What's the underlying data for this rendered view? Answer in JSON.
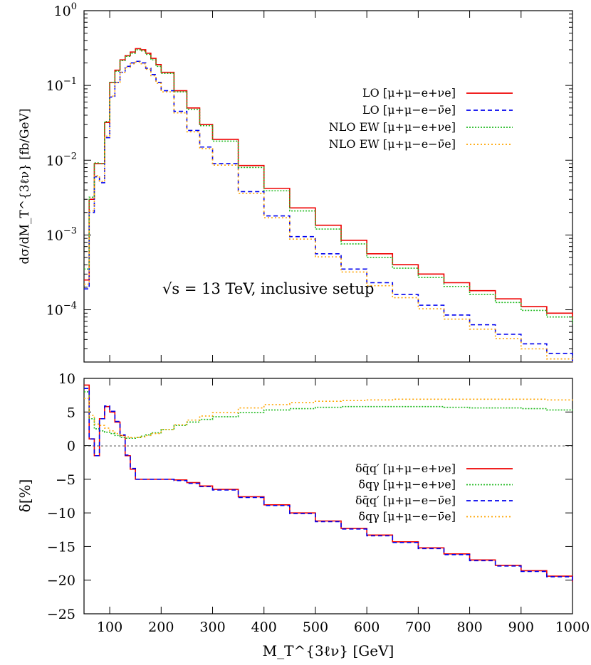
{
  "chart_data": [
    {
      "type": "line",
      "step": true,
      "ylabel": "dσ/dM_T^{3ℓν} [fb/GeV]",
      "yscale": "log",
      "ylim": [
        2e-05,
        1
      ],
      "xlim": [
        50,
        1000
      ],
      "grid": false,
      "legend_position": "top-right",
      "annotation": "√s = 13 TeV, inclusive setup",
      "yticks": [
        "10^-4",
        "10^-3",
        "10^-2",
        "10^-1",
        "10^0"
      ],
      "x": [
        50,
        60,
        70,
        80,
        90,
        100,
        110,
        120,
        130,
        140,
        150,
        160,
        170,
        180,
        190,
        200,
        225,
        250,
        275,
        300,
        350,
        400,
        450,
        500,
        550,
        600,
        650,
        700,
        750,
        800,
        850,
        900,
        950,
        1000
      ],
      "series": [
        {
          "name": "LO [μ+μ−e+νe]",
          "color": "#ee0000",
          "dash": "solid",
          "values": [
            0.00025,
            0.003,
            0.009,
            0.009,
            0.032,
            0.11,
            0.16,
            0.22,
            0.25,
            0.28,
            0.31,
            0.3,
            0.27,
            0.23,
            0.19,
            0.15,
            0.085,
            0.05,
            0.03,
            0.019,
            0.0085,
            0.0042,
            0.0023,
            0.00135,
            0.00085,
            0.00056,
            0.0004,
            0.0003,
            0.00023,
            0.00018,
            0.00014,
            0.00011,
            9e-05,
            7.5e-05
          ]
        },
        {
          "name": "LO [μ+μ−e−ν̄e]",
          "color": "#0000ee",
          "dash": "6,4",
          "values": [
            0.00019,
            0.002,
            0.006,
            0.005,
            0.02,
            0.07,
            0.11,
            0.15,
            0.18,
            0.2,
            0.21,
            0.2,
            0.17,
            0.14,
            0.11,
            0.085,
            0.045,
            0.025,
            0.015,
            0.009,
            0.0038,
            0.0018,
            0.00095,
            0.00056,
            0.00035,
            0.00023,
            0.00016,
            0.000115,
            8.5e-05,
            6.3e-05,
            4.7e-05,
            3.5e-05,
            2.6e-05,
            2e-05
          ]
        },
        {
          "name": "NLO EW [μ+μ−e+νe]",
          "color": "#22bb22",
          "dash": "2,2",
          "values": [
            0.00035,
            0.0032,
            0.0092,
            0.009,
            0.033,
            0.11,
            0.155,
            0.215,
            0.245,
            0.27,
            0.3,
            0.29,
            0.26,
            0.22,
            0.18,
            0.145,
            0.082,
            0.048,
            0.029,
            0.018,
            0.008,
            0.0039,
            0.0021,
            0.0012,
            0.00076,
            0.0005,
            0.00036,
            0.00027,
            0.000205,
            0.00016,
            0.000125,
            9.8e-05,
            8e-05,
            6.6e-05
          ]
        },
        {
          "name": "NLO EW [μ+μ−e−ν̄e]",
          "color": "#ffa500",
          "dash": "2,3",
          "values": [
            0.00022,
            0.0021,
            0.0062,
            0.0052,
            0.021,
            0.072,
            0.11,
            0.15,
            0.175,
            0.195,
            0.205,
            0.195,
            0.165,
            0.135,
            0.107,
            0.082,
            0.043,
            0.024,
            0.0143,
            0.0086,
            0.0036,
            0.0017,
            0.00088,
            0.00051,
            0.00032,
            0.00021,
            0.000145,
            0.000103,
            7.5e-05,
            5.5e-05,
            4.1e-05,
            3e-05,
            2.2e-05,
            1.7e-05
          ]
        }
      ]
    },
    {
      "type": "line",
      "step": true,
      "xlabel": "M_T^{3ℓν} [GeV]",
      "ylabel": "δ[%]",
      "ylim": [
        -25,
        10
      ],
      "xlim": [
        50,
        1000
      ],
      "xticks": [
        100,
        200,
        300,
        400,
        500,
        600,
        700,
        800,
        900,
        1000
      ],
      "yticks": [
        -25,
        -20,
        -15,
        -10,
        -5,
        0,
        5,
        10
      ],
      "grid": false,
      "legend_position": "right",
      "x": [
        50,
        60,
        70,
        80,
        90,
        100,
        110,
        120,
        130,
        140,
        150,
        160,
        170,
        180,
        200,
        225,
        250,
        275,
        300,
        350,
        400,
        450,
        500,
        550,
        600,
        650,
        700,
        750,
        800,
        850,
        900,
        950,
        1000
      ],
      "series": [
        {
          "name": "δq̄q′ [μ+μ−e+νe]",
          "color": "#ee0000",
          "dash": "solid",
          "values": [
            9,
            1,
            -1.5,
            4,
            5.8,
            5,
            3.5,
            1.5,
            -1.5,
            -3.5,
            -5,
            -5,
            -5,
            -5,
            -5,
            -5.1,
            -5.5,
            -6,
            -6.5,
            -7.6,
            -8.8,
            -10,
            -11.2,
            -12.3,
            -13.3,
            -14.3,
            -15.2,
            -16.1,
            -17,
            -17.8,
            -18.6,
            -19.4,
            -20.2
          ]
        },
        {
          "name": "δqγ [μ+μ−e+νe]",
          "color": "#22bb22",
          "dash": "2,2",
          "values": [
            8,
            4,
            2.5,
            2.2,
            2,
            1.8,
            1.5,
            1.2,
            1.1,
            1.1,
            1.2,
            1.4,
            1.6,
            1.9,
            2.4,
            3,
            3.5,
            3.9,
            4.3,
            4.9,
            5.3,
            5.5,
            5.7,
            5.8,
            5.8,
            5.8,
            5.8,
            5.7,
            5.6,
            5.6,
            5.5,
            5.3,
            5.2
          ]
        },
        {
          "name": "δq̄q′ [μ+μ−e−ν̄e]",
          "color": "#0000ee",
          "dash": "6,4",
          "values": [
            8.5,
            1,
            -1.5,
            4,
            5.9,
            5.1,
            3.6,
            1.6,
            -1.4,
            -3.4,
            -5,
            -5,
            -5,
            -5,
            -5,
            -5.2,
            -5.6,
            -6.1,
            -6.6,
            -7.7,
            -8.9,
            -10.1,
            -11.3,
            -12.4,
            -13.4,
            -14.4,
            -15.3,
            -16.2,
            -17.1,
            -17.9,
            -18.7,
            -19.5,
            -20.3
          ]
        },
        {
          "name": "δqγ [μ+μ−e−ν̄e]",
          "color": "#ffa500",
          "dash": "2,3",
          "values": [
            7,
            4.5,
            3.2,
            3,
            2.6,
            2.2,
            1.8,
            1.5,
            1.3,
            1.2,
            1.2,
            1.3,
            1.5,
            1.8,
            2.4,
            3.1,
            3.8,
            4.4,
            4.9,
            5.6,
            6.1,
            6.4,
            6.6,
            6.7,
            6.8,
            6.9,
            6.9,
            6.9,
            6.9,
            6.9,
            6.9,
            6.8,
            6.7
          ]
        }
      ]
    }
  ]
}
